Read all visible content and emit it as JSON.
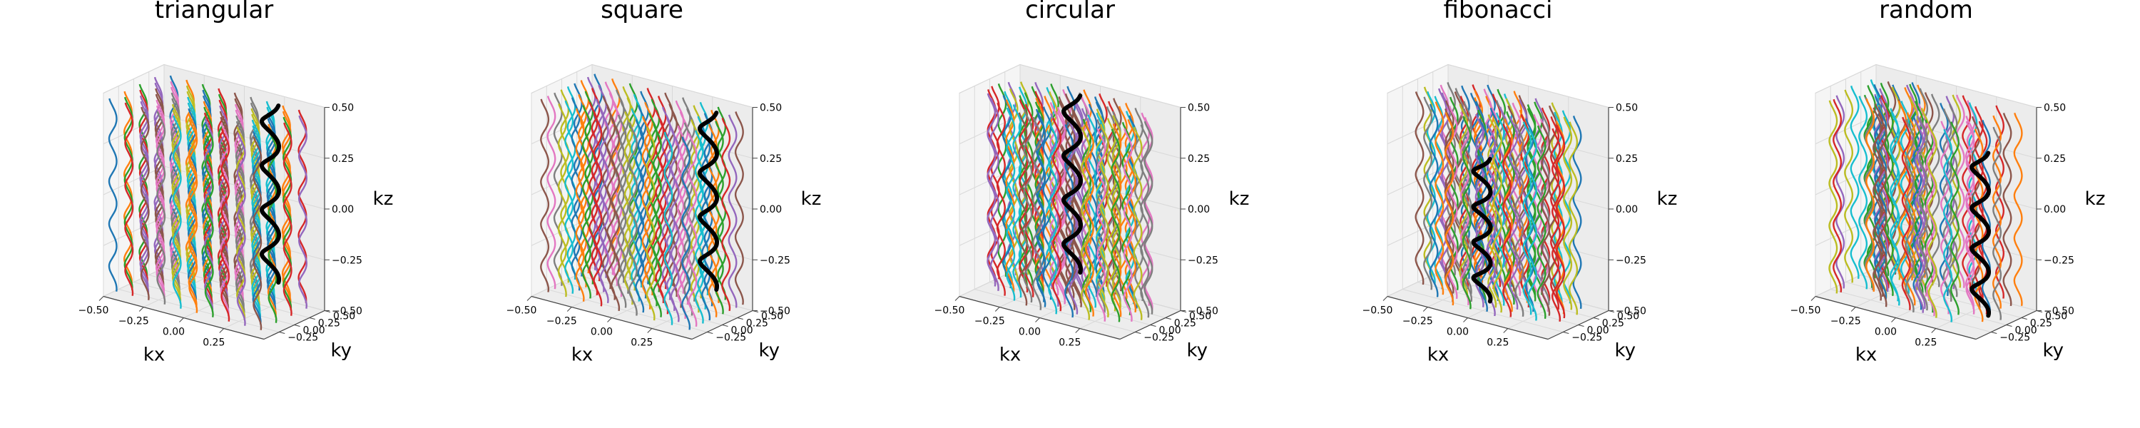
{
  "figure": {
    "trajectory_colors": [
      "#1f77b4",
      "#ff7f0e",
      "#2ca02c",
      "#d62728",
      "#9467bd",
      "#8c564b",
      "#e377c2",
      "#7f7f7f",
      "#bcbd22",
      "#17becf"
    ],
    "highlight_color": "#000000",
    "pane_color": "#f2f2f2",
    "grid_color": "#d9d9d9"
  },
  "chart_data": [
    {
      "type": "line",
      "title": "triangular",
      "xlabel": "kx",
      "ylabel": "ky",
      "zlabel": "kz",
      "xlim": [
        -0.5,
        0.5
      ],
      "ylim": [
        -0.5,
        0.5
      ],
      "zlim": [
        -0.5,
        0.5
      ],
      "xticks": [
        "−0.50",
        "−0.25",
        "0.00",
        "0.25"
      ],
      "yticks": [
        "−0.25",
        "0.00",
        "0.25",
        "0.50"
      ],
      "zticks": [
        "−0.50",
        "−0.25",
        "0.00",
        "0.25",
        "0.50"
      ],
      "grid": true,
      "series_description": "helical readout trajectories along kz, one per in-plane grid point",
      "highlight": {
        "kx": 0.2,
        "ky": 0.4,
        "z_range": [
          -0.4,
          0.47
        ]
      }
    },
    {
      "type": "line",
      "title": "square",
      "xlabel": "kx",
      "ylabel": "ky",
      "zlabel": "kz",
      "xlim": [
        -0.5,
        0.5
      ],
      "ylim": [
        -0.5,
        0.5
      ],
      "zlim": [
        -0.5,
        0.5
      ],
      "xticks": [
        "−0.50",
        "−0.25",
        "0.00",
        "0.25"
      ],
      "yticks": [
        "−0.25",
        "0.00",
        "0.25",
        "0.50"
      ],
      "zticks": [
        "−0.50",
        "−0.25",
        "0.00",
        "0.25",
        "0.50"
      ],
      "grid": true,
      "series_description": "helical readout trajectories along kz, one per in-plane grid point",
      "highlight": {
        "kx": 0.3,
        "ky": 0.3,
        "z_range": [
          -0.4,
          0.47
        ]
      }
    },
    {
      "type": "line",
      "title": "circular",
      "xlabel": "kx",
      "ylabel": "ky",
      "zlabel": "kz",
      "xlim": [
        -0.5,
        0.5
      ],
      "ylim": [
        -0.5,
        0.5
      ],
      "zlim": [
        -0.5,
        0.5
      ],
      "xticks": [
        "−0.50",
        "−0.25",
        "0.00",
        "0.25"
      ],
      "yticks": [
        "−0.25",
        "0.00",
        "0.25",
        "0.50"
      ],
      "zticks": [
        "−0.50",
        "−0.25",
        "0.00",
        "0.25",
        "0.50"
      ],
      "grid": true,
      "series_description": "helical readout trajectories along kz, one per in-plane grid point",
      "highlight": {
        "kx": -0.1,
        "ky": 0.3,
        "z_range": [
          -0.4,
          0.47
        ]
      }
    },
    {
      "type": "line",
      "title": "fibonacci",
      "xlabel": "kx",
      "ylabel": "ky",
      "zlabel": "kz",
      "xlim": [
        -0.5,
        0.5
      ],
      "ylim": [
        -0.5,
        0.5
      ],
      "zlim": [
        -0.5,
        0.5
      ],
      "xticks": [
        "−0.50",
        "−0.25",
        "0.00",
        "0.25"
      ],
      "yticks": [
        "−0.25",
        "0.00",
        "0.25",
        "0.50"
      ],
      "zticks": [
        "−0.50",
        "−0.25",
        "0.00",
        "0.25",
        "0.50"
      ],
      "grid": true,
      "series_description": "helical readout trajectories along kz, one per in-plane grid point",
      "highlight": {
        "kx": -0.1,
        "ky": 0.0,
        "z_range": [
          -0.5,
          0.2
        ]
      }
    },
    {
      "type": "line",
      "title": "random",
      "xlabel": "kx",
      "ylabel": "ky",
      "zlabel": "kz",
      "xlim": [
        -0.5,
        0.5
      ],
      "ylim": [
        -0.5,
        0.5
      ],
      "zlim": [
        -0.5,
        0.5
      ],
      "xticks": [
        "−0.50",
        "−0.25",
        "0.00",
        "0.25"
      ],
      "yticks": [
        "−0.25",
        "0.00",
        "0.25",
        "0.50"
      ],
      "zticks": [
        "−0.50",
        "−0.25",
        "0.00",
        "0.25",
        "0.50"
      ],
      "grid": true,
      "series_description": "helical readout trajectories along kz, one per in-plane grid point",
      "highlight": {
        "kx": 0.3,
        "ky": 0.1,
        "z_range": [
          -0.5,
          0.3
        ]
      }
    }
  ]
}
